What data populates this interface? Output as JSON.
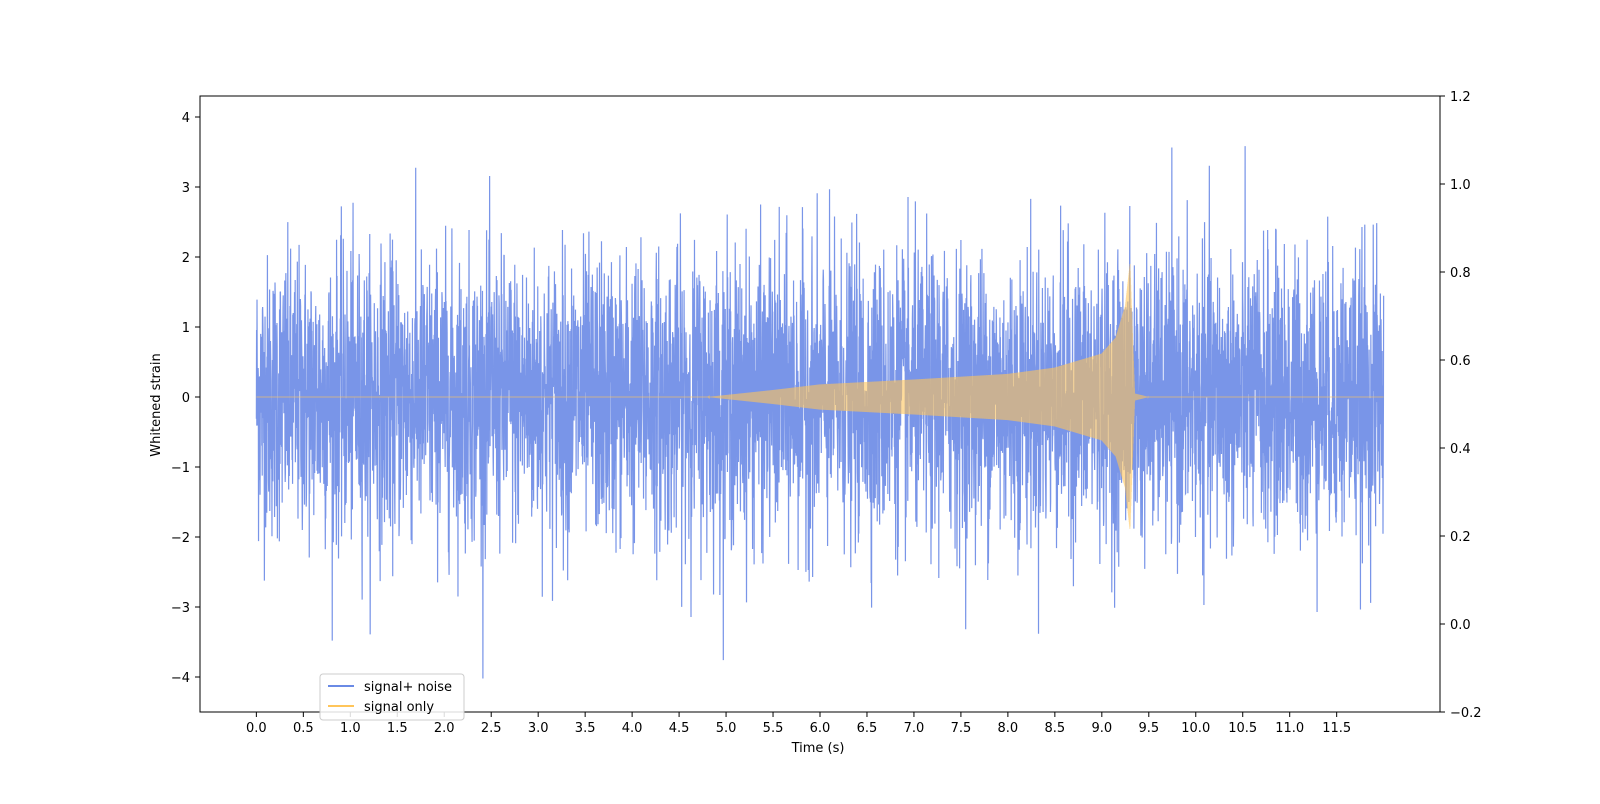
{
  "chart_data": {
    "type": "line",
    "xlabel": "Time (s)",
    "ylabel": "Whitened strain",
    "xlim": [
      -0.6,
      12.6
    ],
    "ylim": [
      -4.5,
      4.3
    ],
    "y2lim": [
      -0.2,
      1.2
    ],
    "xticks": [
      "0.0",
      "0.5",
      "1.0",
      "1.5",
      "2.0",
      "2.5",
      "3.0",
      "3.5",
      "4.0",
      "4.5",
      "5.0",
      "5.5",
      "6.0",
      "6.5",
      "7.0",
      "7.5",
      "8.0",
      "8.5",
      "9.0",
      "9.5",
      "10.0",
      "10.5",
      "11.0",
      "11.5"
    ],
    "yticks": [
      "4",
      "3",
      "2",
      "1",
      "0",
      "−1",
      "−2",
      "−3",
      "−4"
    ],
    "y2ticks": [
      "1.2",
      "1.0",
      "0.8",
      "0.6",
      "0.4",
      "0.2",
      "0.0",
      "−0.2"
    ],
    "legend": {
      "placement": "lower-left"
    },
    "series": [
      {
        "name": "signal+ noise",
        "color": "#6a8ae5",
        "t_range": [
          0.0,
          12.0
        ],
        "noise_sigma": 1.0,
        "noise_range": [
          -4.1,
          3.9
        ]
      },
      {
        "name": "signal only",
        "color": "#ffc55a",
        "t_range": [
          0.0,
          12.0
        ],
        "chirp_onset": 4.8,
        "merger_time": 9.3,
        "peak_amplitude": 1.9,
        "envelope": [
          [
            4.8,
            0.0
          ],
          [
            5.5,
            0.1
          ],
          [
            6.0,
            0.18
          ],
          [
            7.0,
            0.25
          ],
          [
            8.0,
            0.33
          ],
          [
            8.5,
            0.42
          ],
          [
            9.0,
            0.62
          ],
          [
            9.15,
            0.85
          ],
          [
            9.25,
            1.3
          ],
          [
            9.3,
            1.9
          ],
          [
            9.35,
            0.05
          ],
          [
            9.5,
            0.0
          ]
        ]
      }
    ]
  }
}
